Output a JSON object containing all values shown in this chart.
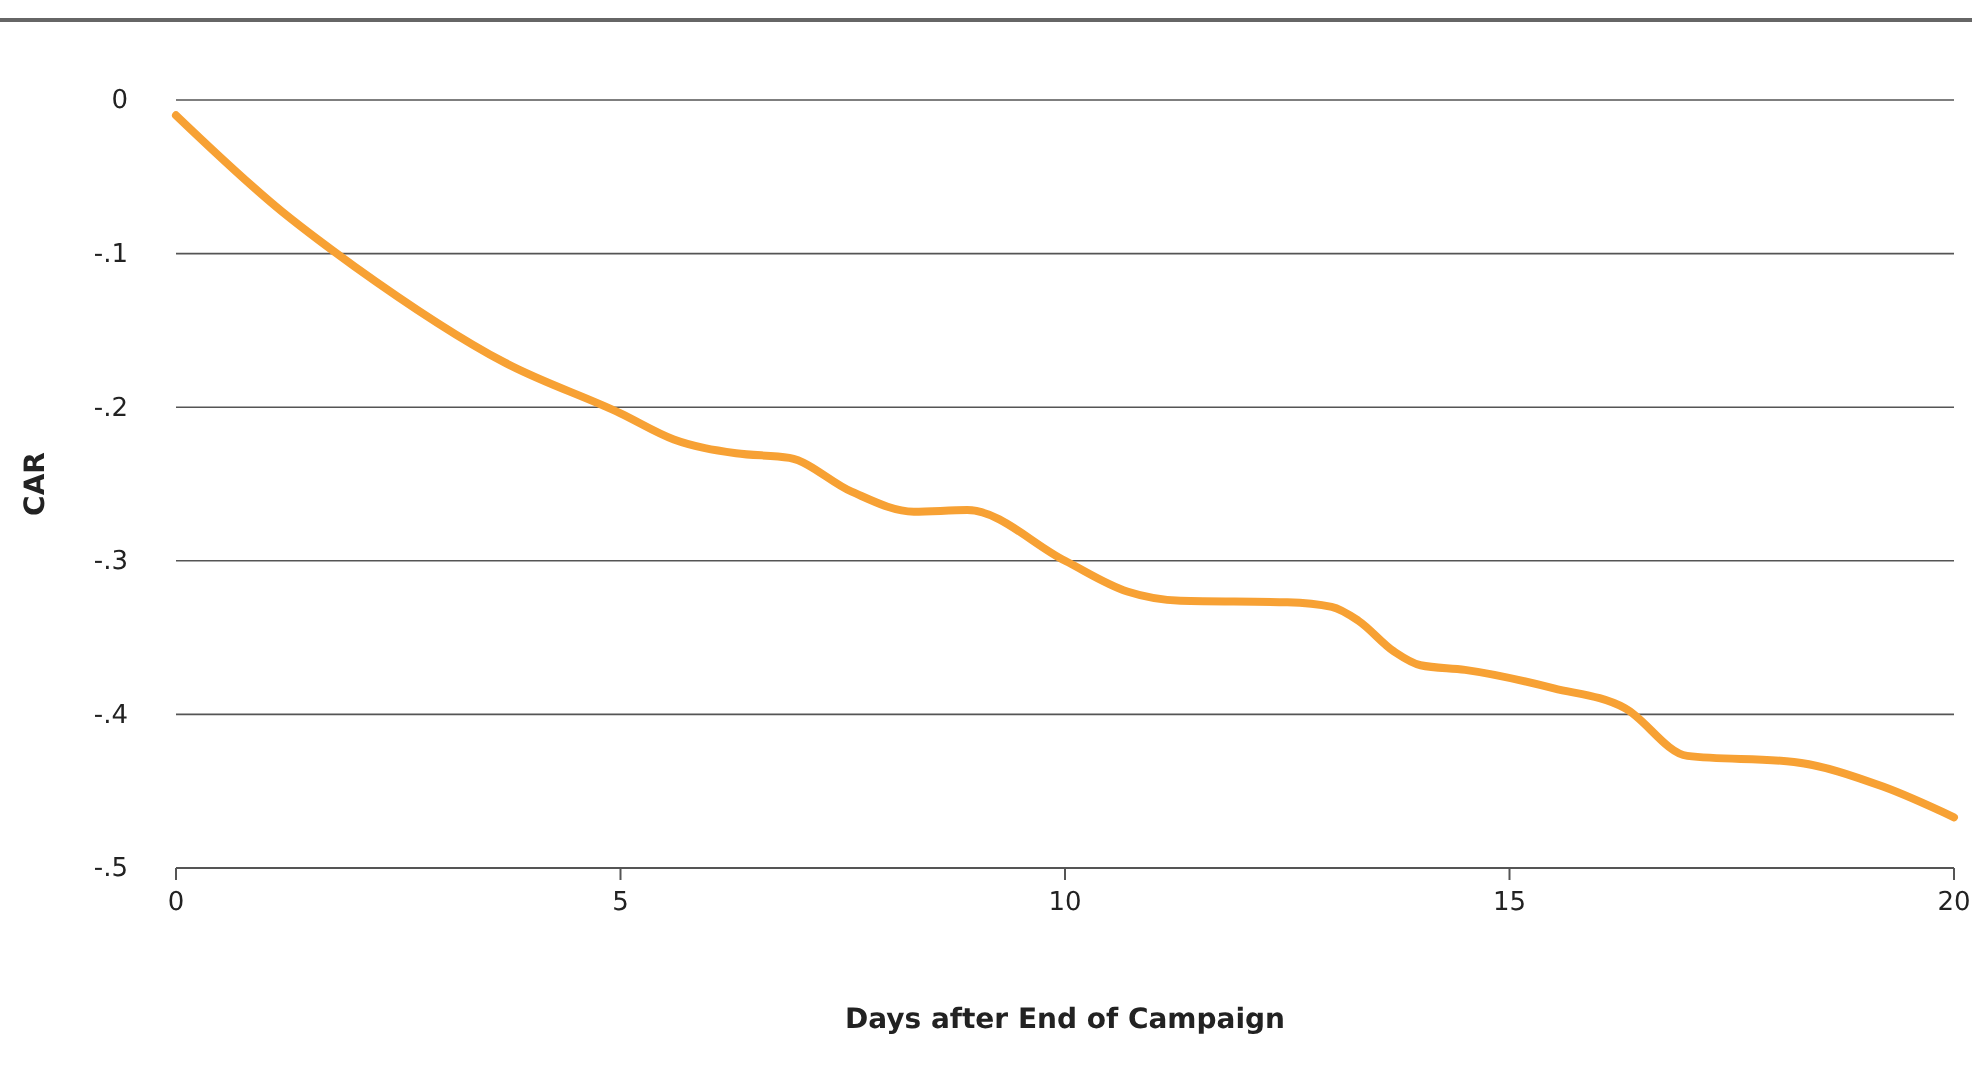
{
  "chart_data": {
    "type": "line",
    "xlabel": "Days after End of Campaign",
    "ylabel": "CAR",
    "x": [
      0,
      1.2,
      1.6,
      2,
      3.7,
      5,
      5.6,
      6.3,
      6.9,
      7.6,
      8.3,
      8.9,
      10,
      10.7,
      11.3,
      12.5,
      13,
      13.3,
      13.7,
      14,
      14.5,
      15.5,
      16.3,
      17,
      18.2,
      19.2,
      20
    ],
    "series": [
      {
        "color": "#f7a134",
        "values": [
          -0.01,
          -0.073,
          -0.091,
          -0.108,
          -0.171,
          -0.204,
          -0.221,
          -0.23,
          -0.233,
          -0.255,
          -0.268,
          -0.267,
          -0.3,
          -0.32,
          -0.326,
          -0.327,
          -0.33,
          -0.339,
          -0.359,
          -0.368,
          -0.371,
          -0.383,
          -0.396,
          -0.427,
          -0.431,
          -0.447,
          -0.467
        ]
      }
    ],
    "xlim": [
      0,
      20
    ],
    "xticks": [
      0,
      5,
      10,
      15,
      20
    ],
    "ylim": [
      -0.5,
      0
    ],
    "yticks": [
      {
        "value": -0.5,
        "label": "-.5"
      },
      {
        "value": -0.4,
        "label": "-.4"
      },
      {
        "value": -0.3,
        "label": "-.3"
      },
      {
        "value": -0.2,
        "label": "-.2"
      },
      {
        "value": -0.1,
        "label": "-.1"
      },
      {
        "value": 0,
        "label": "0"
      }
    ],
    "grid": "y",
    "marker": "none",
    "line_style": "solid"
  }
}
